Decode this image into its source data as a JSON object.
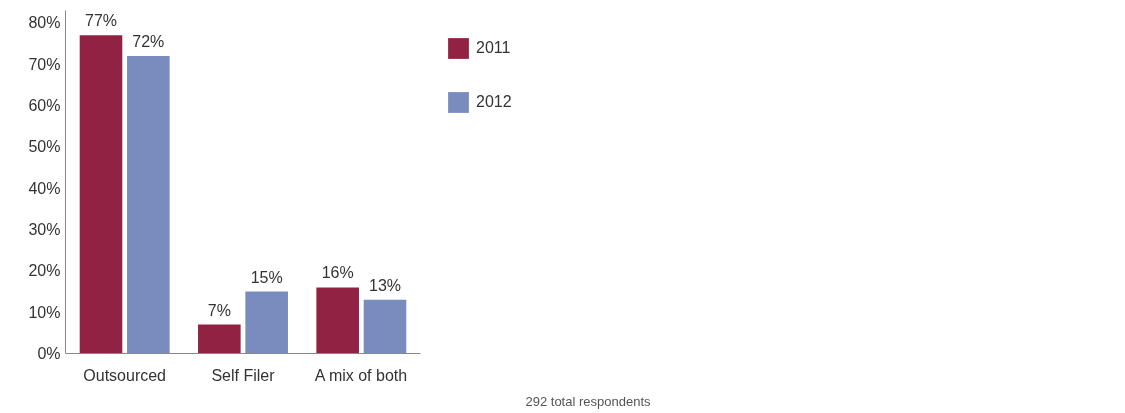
{
  "chart_data": {
    "type": "bar",
    "categories": [
      "Outsourced",
      "Self Filer",
      "A mix of both"
    ],
    "series": [
      {
        "name": "2011",
        "color": "#922244",
        "values": [
          77,
          7,
          16
        ],
        "value_labels": [
          "77%",
          "7%",
          "16%"
        ]
      },
      {
        "name": "2012",
        "color": "#7a8bbd",
        "values": [
          72,
          15,
          13
        ],
        "value_labels": [
          "72%",
          "15%",
          "13%"
        ]
      }
    ],
    "ylim": [
      0,
      83
    ],
    "yticks": [
      {
        "value": 0,
        "label": "0%"
      },
      {
        "value": 10,
        "label": "10%"
      },
      {
        "value": 20,
        "label": "20%"
      },
      {
        "value": 30,
        "label": "30%"
      },
      {
        "value": 40,
        "label": "40%"
      },
      {
        "value": 50,
        "label": "50%"
      },
      {
        "value": 60,
        "label": "60%"
      },
      {
        "value": 70,
        "label": "70%"
      },
      {
        "value": 80,
        "label": "80%"
      }
    ],
    "grid": false,
    "legend": "top right",
    "annotations": [
      "292 total respondents"
    ]
  }
}
